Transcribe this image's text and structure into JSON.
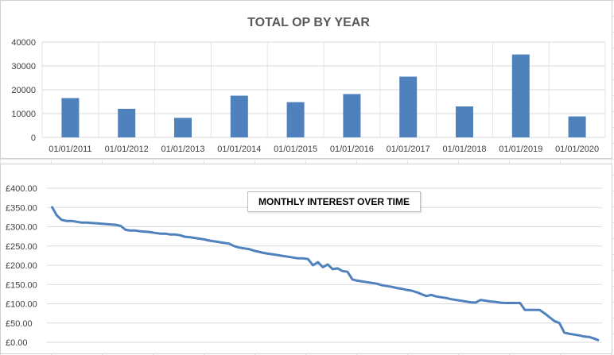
{
  "chart_data": [
    {
      "type": "bar",
      "title": "TOTAL OP BY YEAR",
      "categories": [
        "01/01/2011",
        "01/01/2012",
        "01/01/2013",
        "01/01/2014",
        "01/01/2015",
        "01/01/2016",
        "01/01/2017",
        "01/01/2018",
        "01/01/2019",
        "01/01/2020"
      ],
      "values": [
        16500,
        12000,
        8200,
        17500,
        14800,
        18200,
        25500,
        13000,
        34800,
        8800
      ],
      "ylim": [
        0,
        40000
      ],
      "yticks": [
        0,
        10000,
        20000,
        30000,
        40000
      ],
      "ytick_labels": [
        "0",
        "10000",
        "20000",
        "30000",
        "40000"
      ],
      "grid": true,
      "color": "#4f81bd"
    },
    {
      "type": "line",
      "title": "MONTHLY INTEREST OVER TIME",
      "ylim": [
        0,
        400
      ],
      "yticks": [
        0,
        50,
        100,
        150,
        200,
        250,
        300,
        350,
        400
      ],
      "ytick_labels": [
        "£0.00",
        "£50.00",
        "£100.00",
        "£150.00",
        "£200.00",
        "£250.00",
        "£300.00",
        "£350.00",
        "£400.00"
      ],
      "grid": true,
      "color": "#4f81bd",
      "values": [
        353,
        330,
        318,
        315,
        315,
        313,
        311,
        311,
        310,
        309,
        308,
        307,
        306,
        305,
        302,
        292,
        290,
        290,
        288,
        287,
        286,
        284,
        282,
        282,
        280,
        280,
        278,
        274,
        273,
        271,
        269,
        267,
        264,
        262,
        260,
        258,
        256,
        250,
        246,
        244,
        242,
        238,
        235,
        232,
        230,
        228,
        226,
        224,
        222,
        220,
        218,
        218,
        216,
        200,
        208,
        195,
        202,
        190,
        192,
        185,
        183,
        163,
        160,
        158,
        156,
        154,
        152,
        148,
        146,
        144,
        141,
        139,
        136,
        134,
        130,
        125,
        120,
        123,
        119,
        117,
        115,
        112,
        110,
        108,
        106,
        104,
        103,
        110,
        108,
        106,
        105,
        103,
        102,
        102,
        102,
        102,
        84,
        84,
        84,
        84,
        75,
        65,
        55,
        50,
        25,
        22,
        20,
        18,
        15,
        14,
        10,
        5
      ]
    }
  ]
}
